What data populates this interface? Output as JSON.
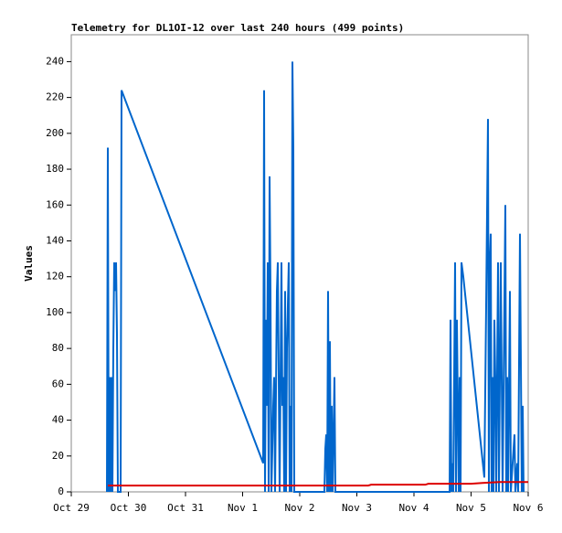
{
  "chart_data": {
    "type": "line",
    "title": "Telemetry for DL1OI-12 over last 240 hours (499 points)",
    "y_label": "Values",
    "xlim": [
      0,
      8
    ],
    "xticks": [
      {
        "value": 0,
        "label": "Oct 29"
      },
      {
        "value": 1,
        "label": "Oct 30"
      },
      {
        "value": 2,
        "label": "Oct 31"
      },
      {
        "value": 3,
        "label": "Nov 1"
      },
      {
        "value": 4,
        "label": "Nov 2"
      },
      {
        "value": 5,
        "label": "Nov 3"
      },
      {
        "value": 6,
        "label": "Nov 4"
      },
      {
        "value": 7,
        "label": "Nov 5"
      },
      {
        "value": 8,
        "label": "Nov 6"
      }
    ],
    "ylim": [
      0,
      255
    ],
    "yticks": [
      0,
      20,
      40,
      60,
      80,
      100,
      120,
      140,
      160,
      180,
      200,
      220,
      240
    ],
    "series": [
      {
        "color": "#0066cc",
        "x": [
          0.624,
          0.64,
          0.656,
          0.672,
          0.688,
          0.704,
          0.72,
          0.736,
          0.752,
          0.768,
          0.784,
          0.8,
          0.816,
          0.864,
          0.88,
          3.36,
          3.376,
          3.392,
          3.408,
          3.424,
          3.44,
          3.456,
          3.472,
          3.488,
          3.504,
          3.536,
          3.552,
          3.568,
          3.6,
          3.616,
          3.632,
          3.648,
          3.68,
          3.696,
          3.712,
          3.728,
          3.744,
          3.76,
          3.776,
          3.808,
          3.824,
          3.84,
          3.856,
          3.872,
          3.888,
          3.904,
          4.432,
          4.448,
          4.464,
          4.48,
          4.496,
          4.512,
          4.528,
          4.544,
          4.56,
          4.576,
          4.608,
          4.624,
          6.624,
          6.64,
          6.656,
          6.672,
          6.688,
          6.72,
          6.736,
          6.752,
          6.784,
          6.8,
          6.816,
          6.832,
          6.864,
          7.232,
          7.264,
          7.296,
          7.312,
          7.328,
          7.344,
          7.36,
          7.376,
          7.392,
          7.408,
          7.424,
          7.44,
          7.472,
          7.488,
          7.52,
          7.536,
          7.552,
          7.6,
          7.616,
          7.632,
          7.648,
          7.68,
          7.696,
          7.76,
          7.776,
          7.808,
          7.824,
          7.856,
          7.872,
          7.888,
          7.904,
          7.92
        ],
        "values": [
          0,
          192,
          0,
          64,
          0,
          64,
          0,
          80,
          128,
          112,
          128,
          88,
          0,
          0,
          224,
          16,
          224,
          0,
          96,
          48,
          128,
          0,
          176,
          112,
          0,
          48,
          64,
          0,
          112,
          128,
          64,
          0,
          128,
          48,
          64,
          0,
          112,
          0,
          80,
          128,
          0,
          48,
          0,
          240,
          192,
          0,
          0,
          24,
          32,
          0,
          112,
          0,
          84,
          0,
          48,
          0,
          64,
          0,
          0,
          96,
          0,
          16,
          0,
          128,
          0,
          96,
          0,
          64,
          0,
          128,
          120,
          8,
          104,
          208,
          0,
          128,
          144,
          0,
          64,
          0,
          96,
          64,
          0,
          128,
          0,
          128,
          64,
          0,
          160,
          0,
          64,
          0,
          112,
          0,
          32,
          0,
          16,
          0,
          144,
          72,
          0,
          48,
          0
        ]
      },
      {
        "color": "#dd0000",
        "x": [
          0.64,
          5.2,
          5.25,
          6.2,
          6.25,
          7.0,
          7.2,
          7.5,
          8
        ],
        "values": [
          3.5,
          3.5,
          4,
          4,
          4.5,
          4.5,
          5,
          5.5,
          5.5
        ]
      }
    ]
  }
}
